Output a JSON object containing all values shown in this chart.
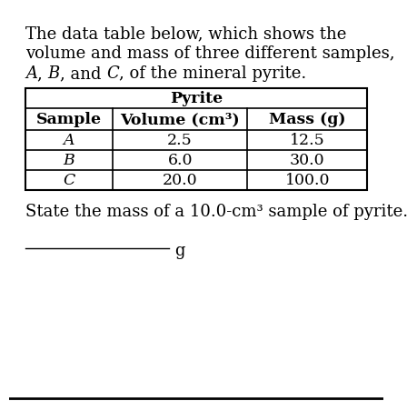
{
  "bg_color": "#ffffff",
  "text_color": "#000000",
  "intro_line1": "The data table below, which shows the",
  "intro_line2": "volume and mass of three different samples,",
  "intro_line3_parts": [
    [
      "A",
      true
    ],
    [
      ", ",
      false
    ],
    [
      "B",
      true
    ],
    [
      ", and ",
      false
    ],
    [
      "C",
      true
    ],
    [
      ", of the mineral pyrite.",
      false
    ]
  ],
  "table_title": "Pyrite",
  "col_headers": [
    "Sample",
    "Volume (cm³)",
    "Mass (g)"
  ],
  "rows": [
    [
      "A",
      "2.5",
      "12.5"
    ],
    [
      "B",
      "6.0",
      "30.0"
    ],
    [
      "C",
      "20.0",
      "100.0"
    ]
  ],
  "question_text": "State the mass of a 10.0-cm³ sample of pyrite.",
  "answer_label": "g",
  "fs_body": 13,
  "fs_table": 12.5
}
